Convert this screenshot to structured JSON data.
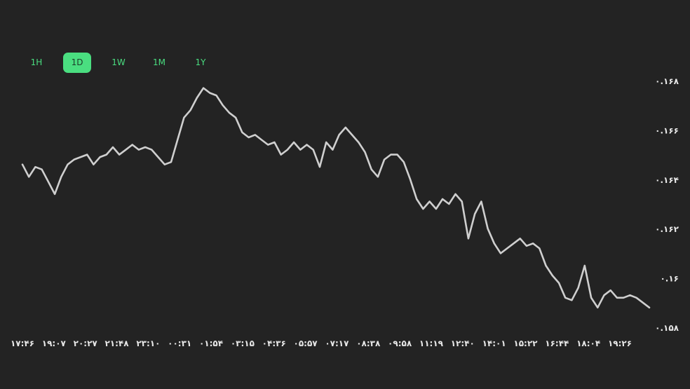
{
  "tabs": [
    {
      "label": "1H",
      "active": false
    },
    {
      "label": "1D",
      "active": true
    },
    {
      "label": "1W",
      "active": false
    },
    {
      "label": "1M",
      "active": false
    },
    {
      "label": "1Y",
      "active": false
    }
  ],
  "colors": {
    "background": "#232323",
    "accent": "#4ade80",
    "line": "#cfcfcf",
    "text": "#e8e8e8"
  },
  "chart_data": {
    "type": "line",
    "title": "",
    "xlabel": "",
    "ylabel": "",
    "grid": false,
    "legend": "none",
    "ylim": [
      0.158,
      0.168
    ],
    "y_ticks": [
      {
        "value": 0.168,
        "label": "۰.۱۶۸"
      },
      {
        "value": 0.166,
        "label": "۰.۱۶۶"
      },
      {
        "value": 0.164,
        "label": "۰.۱۶۴"
      },
      {
        "value": 0.162,
        "label": "۰.۱۶۲"
      },
      {
        "value": 0.16,
        "label": "۰.۱۶"
      },
      {
        "value": 0.158,
        "label": "۰.۱۵۸"
      }
    ],
    "x_ticks": [
      "۱۷:۴۶",
      "۱۹:۰۷",
      "۲۰:۲۷",
      "۲۱:۴۸",
      "۲۳:۱۰",
      "۰۰:۳۱",
      "۰۱:۵۴",
      "۰۳:۱۵",
      "۰۴:۳۶",
      "۰۵:۵۷",
      "۰۷:۱۷",
      "۰۸:۳۸",
      "۰۹:۵۸",
      "۱۱:۱۹",
      "۱۲:۴۰",
      "۱۴:۰۱",
      "۱۵:۲۲",
      "۱۶:۴۴",
      "۱۸:۰۴",
      "۱۹:۲۶"
    ],
    "series": [
      {
        "values": [
          0.1646,
          0.1641,
          0.1645,
          0.1644,
          0.1639,
          0.1634,
          0.1641,
          0.1646,
          0.1648,
          0.1649,
          0.165,
          0.1646,
          0.1649,
          0.165,
          0.1653,
          0.165,
          0.1652,
          0.1654,
          0.1652,
          0.1653,
          0.1652,
          0.1649,
          0.1646,
          0.1647,
          0.1656,
          0.1665,
          0.1668,
          0.1673,
          0.1677,
          0.1675,
          0.1674,
          0.167,
          0.1667,
          0.1665,
          0.1659,
          0.1657,
          0.1658,
          0.1656,
          0.1654,
          0.1655,
          0.165,
          0.1652,
          0.1655,
          0.1652,
          0.1654,
          0.1652,
          0.1645,
          0.1655,
          0.1652,
          0.1658,
          0.1661,
          0.1658,
          0.1655,
          0.1651,
          0.1644,
          0.1641,
          0.1648,
          0.165,
          0.165,
          0.1647,
          0.164,
          0.1632,
          0.1628,
          0.1631,
          0.1628,
          0.1632,
          0.163,
          0.1634,
          0.1631,
          0.1616,
          0.1626,
          0.1631,
          0.162,
          0.1614,
          0.161,
          0.1612,
          0.1614,
          0.1616,
          0.1613,
          0.1614,
          0.1612,
          0.1605,
          0.1601,
          0.1598,
          0.1592,
          0.1591,
          0.1596,
          0.1605,
          0.1592,
          0.1588,
          0.1593,
          0.1595,
          0.1592,
          0.1592,
          0.1593,
          0.1592,
          0.159,
          0.1588
        ]
      }
    ]
  }
}
